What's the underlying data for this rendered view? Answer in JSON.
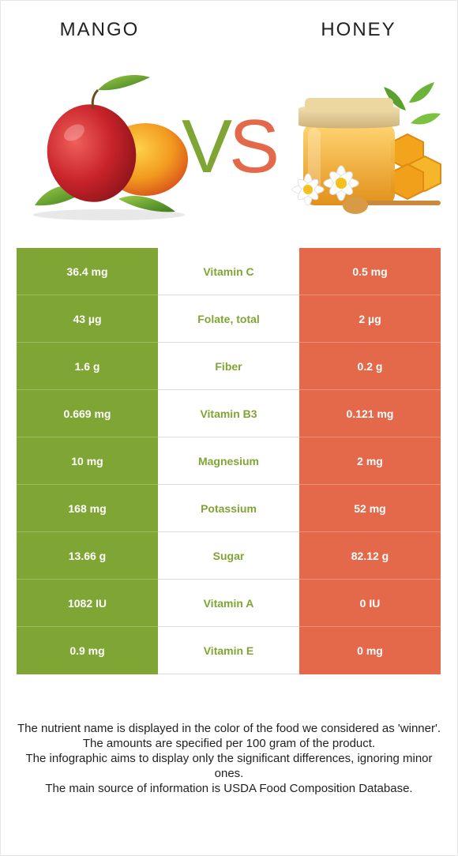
{
  "header": {
    "left_food": "MANGO",
    "right_food": "HONEY",
    "vs_v": "V",
    "vs_s": "S"
  },
  "colors": {
    "winner_left": "#7fa535",
    "winner_right": "#e4694b"
  },
  "rows": [
    {
      "left": "36.4 mg",
      "nutrient": "Vitamin C",
      "right": "0.5 mg"
    },
    {
      "left": "43 µg",
      "nutrient": "Folate, total",
      "right": "2 µg"
    },
    {
      "left": "1.6 g",
      "nutrient": "Fiber",
      "right": "0.2 g"
    },
    {
      "left": "0.669 mg",
      "nutrient": "Vitamin B3",
      "right": "0.121 mg"
    },
    {
      "left": "10 mg",
      "nutrient": "Magnesium",
      "right": "2 mg"
    },
    {
      "left": "168 mg",
      "nutrient": "Potassium",
      "right": "52 mg"
    },
    {
      "left": "13.66 g",
      "nutrient": "Sugar",
      "right": "82.12 g"
    },
    {
      "left": "1082 IU",
      "nutrient": "Vitamin A",
      "right": "0 IU"
    },
    {
      "left": "0.9 mg",
      "nutrient": "Vitamin E",
      "right": "0 mg"
    }
  ],
  "footer": {
    "line1": "The nutrient name is displayed in the color of the food we considered as 'winner'.",
    "line2": "The amounts are specified per 100 gram of the product.",
    "line3": "The infographic aims to display only the significant differences, ignoring minor ones.",
    "line4": "The main source of information is USDA Food Composition Database."
  }
}
